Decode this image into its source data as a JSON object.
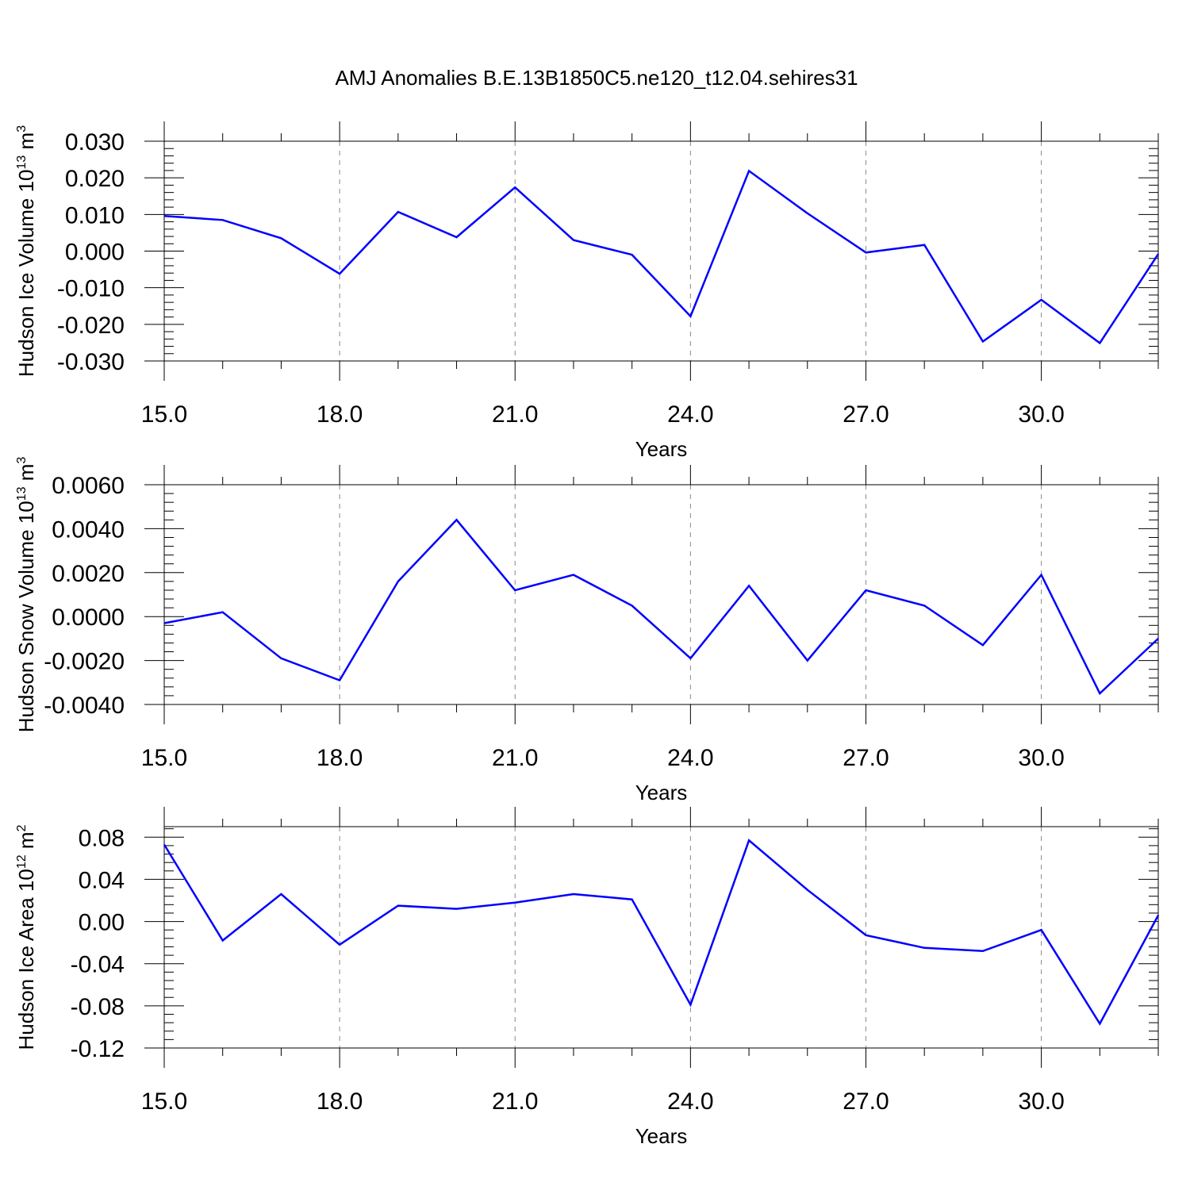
{
  "title": "AMJ Anomalies B.E.13B1850C5.ne120_t12.04.sehires31",
  "line_color": "#0000ff",
  "chart_data": [
    {
      "type": "line",
      "name": "ice-volume",
      "ylabel": {
        "base": "Hudson Ice Volume 10",
        "exp1": "13",
        "unit": " m",
        "exp2": "3"
      },
      "xlabel": "Years",
      "xlim": [
        15,
        32
      ],
      "ylim": [
        -0.03,
        0.03
      ],
      "x_ticks": [
        15,
        18,
        21,
        24,
        27,
        30
      ],
      "x_tick_labels": [
        "15.0",
        "18.0",
        "21.0",
        "24.0",
        "27.0",
        "30.0"
      ],
      "y_ticks": [
        -0.03,
        -0.02,
        -0.01,
        0.0,
        0.01,
        0.02,
        0.03
      ],
      "y_tick_labels": [
        "-0.030",
        "-0.020",
        "-0.010",
        "0.000",
        "0.010",
        "0.020",
        "0.030"
      ],
      "y_minor_step": 0.002,
      "x_minor_step": 1,
      "grid": "x-major dashed",
      "x": [
        15,
        16,
        17,
        18,
        19,
        20,
        21,
        22,
        23,
        24,
        25,
        26,
        27,
        28,
        29,
        30,
        31,
        32
      ],
      "y": [
        0.0096,
        0.0085,
        0.0035,
        -0.0062,
        0.0107,
        0.0038,
        0.0174,
        0.003,
        -0.001,
        -0.0178,
        0.0219,
        0.0103,
        -0.0004,
        0.0017,
        -0.0247,
        -0.0133,
        -0.0251,
        -0.0008
      ]
    },
    {
      "type": "line",
      "name": "snow-volume",
      "ylabel": {
        "base": "Hudson Snow Volume 10",
        "exp1": "13",
        "unit": " m",
        "exp2": "3"
      },
      "xlabel": "Years",
      "xlim": [
        15,
        32
      ],
      "ylim": [
        -0.004,
        0.006
      ],
      "x_ticks": [
        15,
        18,
        21,
        24,
        27,
        30
      ],
      "x_tick_labels": [
        "15.0",
        "18.0",
        "21.0",
        "24.0",
        "27.0",
        "30.0"
      ],
      "y_ticks": [
        -0.004,
        -0.002,
        0.0,
        0.002,
        0.004,
        0.006
      ],
      "y_tick_labels": [
        "-0.0040",
        "-0.0020",
        "0.0000",
        "0.0020",
        "0.0040",
        "0.0060"
      ],
      "y_minor_step": 0.0004,
      "x_minor_step": 1,
      "grid": "x-major dashed",
      "x": [
        15,
        16,
        17,
        18,
        19,
        20,
        21,
        22,
        23,
        24,
        25,
        26,
        27,
        28,
        29,
        30,
        31,
        32
      ],
      "y": [
        -0.0003,
        0.0002,
        -0.0019,
        -0.0029,
        0.0016,
        0.0044,
        0.0012,
        0.0019,
        0.0005,
        -0.0019,
        0.0014,
        -0.002,
        0.0012,
        0.0005,
        -0.0013,
        0.0019,
        -0.0035,
        -0.001
      ]
    },
    {
      "type": "line",
      "name": "ice-area",
      "ylabel": {
        "base": "Hudson Ice Area 10",
        "exp1": "12",
        "unit": " m",
        "exp2": "2"
      },
      "xlabel": "Years",
      "xlim": [
        15,
        32
      ],
      "ylim": [
        -0.12,
        0.09
      ],
      "x_ticks": [
        15,
        18,
        21,
        24,
        27,
        30
      ],
      "x_tick_labels": [
        "15.0",
        "18.0",
        "21.0",
        "24.0",
        "27.0",
        "30.0"
      ],
      "y_ticks": [
        -0.12,
        -0.08,
        -0.04,
        0.0,
        0.04,
        0.08
      ],
      "y_tick_labels": [
        "-0.12",
        "-0.08",
        "-0.04",
        "0.00",
        "0.04",
        "0.08"
      ],
      "y_minor_step": 0.008,
      "x_minor_step": 1,
      "grid": "x-major dashed",
      "x": [
        15,
        16,
        17,
        18,
        19,
        20,
        21,
        22,
        23,
        24,
        25,
        26,
        27,
        28,
        29,
        30,
        31,
        32
      ],
      "y": [
        0.073,
        -0.018,
        0.026,
        -0.022,
        0.015,
        0.012,
        0.018,
        0.026,
        0.021,
        -0.079,
        0.077,
        0.03,
        -0.013,
        -0.025,
        -0.028,
        -0.008,
        -0.097,
        0.006
      ]
    }
  ]
}
